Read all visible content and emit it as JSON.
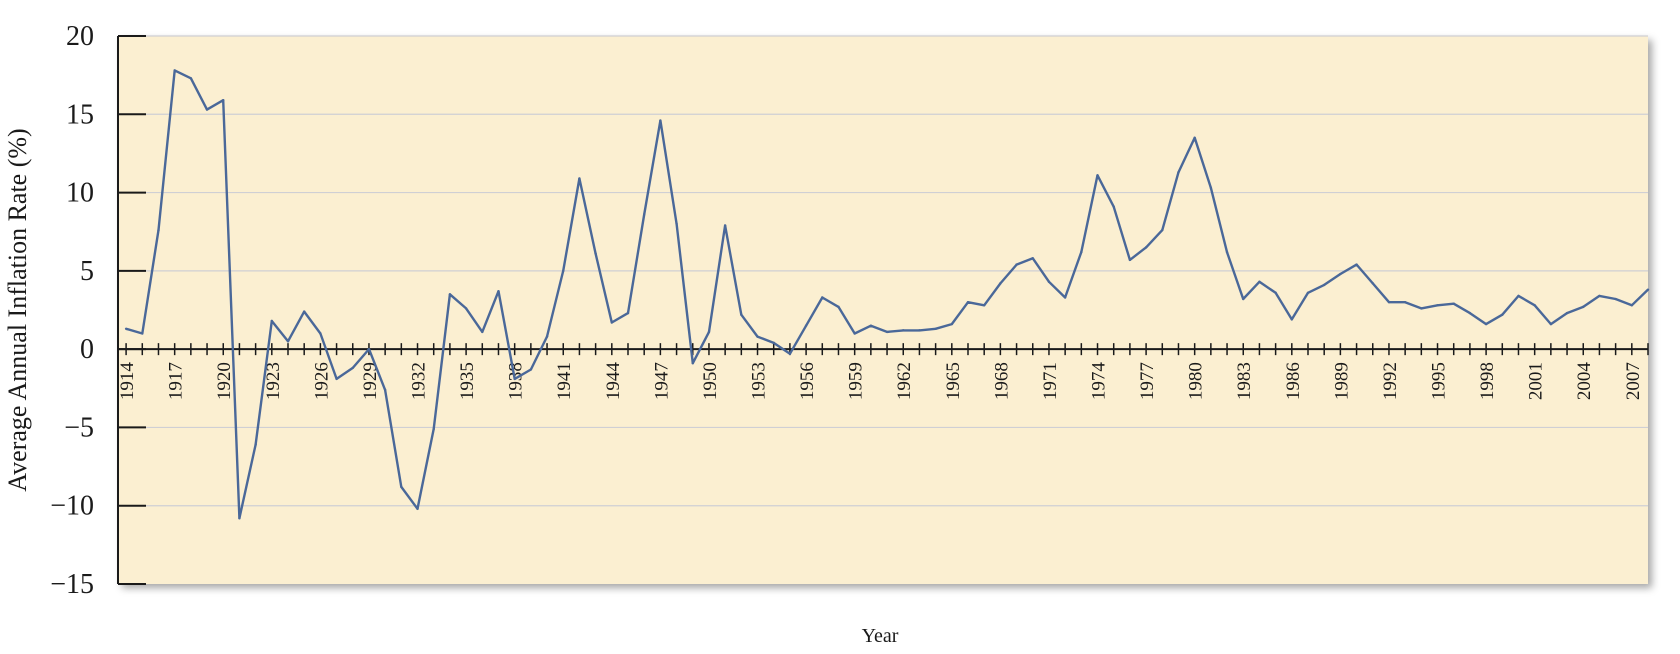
{
  "chart_data": {
    "type": "line",
    "title": "",
    "xlabel": "Year",
    "ylabel": "Average Annual Inflation Rate (%)",
    "xlim": [
      1913.5,
      2008
    ],
    "ylim": [
      -15,
      20
    ],
    "yticks": [
      20,
      15,
      10,
      5,
      0,
      -5,
      -10,
      -15
    ],
    "xtick_labels": [
      "1914",
      "1917",
      "1920",
      "1923",
      "1926",
      "1929",
      "1932",
      "1935",
      "1938",
      "1941",
      "1944",
      "1947",
      "1950",
      "1953",
      "1956",
      "1959",
      "1962",
      "1965",
      "1968",
      "1971",
      "1974",
      "1977",
      "1980",
      "1983",
      "1986",
      "1989",
      "1992",
      "1995",
      "1998",
      "2001",
      "2004",
      "2007"
    ],
    "grid": true,
    "colors": {
      "panel": "#fbefd1",
      "line": "#4a6899",
      "grid": "#cfcfd4",
      "axis": "#1a1a1a"
    },
    "series": [
      {
        "x": [
          1914,
          1915,
          1916,
          1917,
          1918,
          1919,
          1920,
          1921,
          1922,
          1923,
          1924,
          1925,
          1926,
          1927,
          1928,
          1929,
          1930,
          1931,
          1932,
          1933,
          1934,
          1935,
          1936,
          1937,
          1938,
          1939,
          1940,
          1941,
          1942,
          1943,
          1944,
          1945,
          1946,
          1947,
          1948,
          1949,
          1950,
          1951,
          1952,
          1953,
          1954,
          1955,
          1956,
          1957,
          1958,
          1959,
          1960,
          1961,
          1962,
          1963,
          1964,
          1965,
          1966,
          1967,
          1968,
          1969,
          1970,
          1971,
          1972,
          1973,
          1974,
          1975,
          1976,
          1977,
          1978,
          1979,
          1980,
          1981,
          1982,
          1983,
          1984,
          1985,
          1986,
          1987,
          1988,
          1989,
          1990,
          1991,
          1992,
          1993,
          1994,
          1995,
          1996,
          1997,
          1998,
          1999,
          2000,
          2001,
          2002,
          2003,
          2004,
          2005,
          2006,
          2007,
          2008
        ],
        "values": [
          1.3,
          1.0,
          7.6,
          17.8,
          17.3,
          15.3,
          15.9,
          -10.8,
          -6.1,
          1.8,
          0.5,
          2.4,
          1.0,
          -1.9,
          -1.2,
          0.0,
          -2.6,
          -8.8,
          -10.2,
          -5.1,
          3.5,
          2.6,
          1.1,
          3.7,
          -1.9,
          -1.3,
          0.8,
          5.0,
          10.9,
          6.1,
          1.7,
          2.3,
          8.6,
          14.6,
          8.0,
          -0.9,
          1.1,
          7.9,
          2.2,
          0.8,
          0.4,
          -0.3,
          1.5,
          3.3,
          2.7,
          1.0,
          1.5,
          1.1,
          1.2,
          1.2,
          1.3,
          1.6,
          3.0,
          2.8,
          4.2,
          5.4,
          5.8,
          4.3,
          3.3,
          6.2,
          11.1,
          9.1,
          5.7,
          6.5,
          7.6,
          11.3,
          13.5,
          10.3,
          6.2,
          3.2,
          4.3,
          3.6,
          1.9,
          3.6,
          4.1,
          4.8,
          5.4,
          4.2,
          3.0,
          3.0,
          2.6,
          2.8,
          2.9,
          2.3,
          1.6,
          2.2,
          3.4,
          2.8,
          1.6,
          2.3,
          2.7,
          3.4,
          3.2,
          2.8,
          3.8
        ]
      }
    ]
  }
}
